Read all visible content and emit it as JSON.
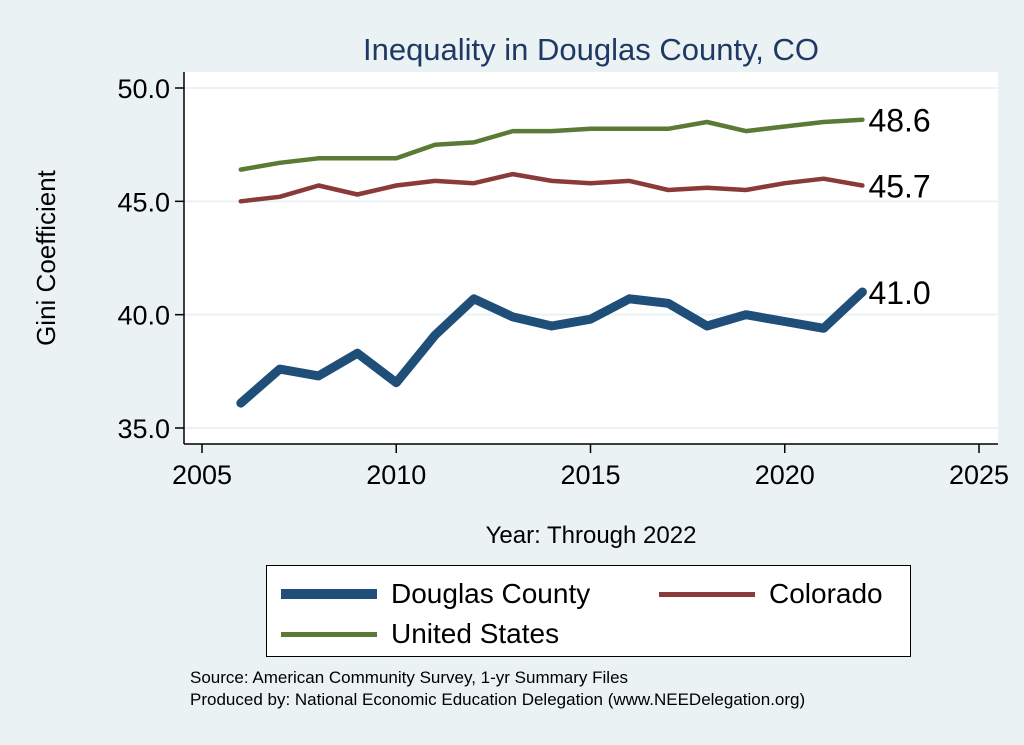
{
  "chart_data": {
    "type": "line",
    "title": "Inequality in Douglas County, CO",
    "xlabel": "Year: Through 2022",
    "ylabel": "Gini Coefficient",
    "xlim": [
      2005,
      2025
    ],
    "ylim": [
      35,
      50
    ],
    "xticks": [
      2005,
      2010,
      2015,
      2020,
      2025
    ],
    "yticks": [
      35,
      40,
      45,
      50
    ],
    "x_tick_labels": [
      "2005",
      "2010",
      "2015",
      "2020",
      "2025"
    ],
    "y_tick_labels": [
      "35.0",
      "40.0",
      "45.0",
      "50.0"
    ],
    "grid": true,
    "legend_position": "bottom",
    "x": [
      2006,
      2007,
      2008,
      2009,
      2010,
      2011,
      2012,
      2013,
      2014,
      2015,
      2016,
      2017,
      2018,
      2019,
      2020,
      2021,
      2022
    ],
    "series": [
      {
        "name": "Douglas County",
        "color": "#1f4e79",
        "values": [
          36.1,
          37.6,
          37.3,
          38.3,
          37.0,
          39.1,
          40.7,
          39.9,
          39.5,
          39.8,
          40.7,
          40.5,
          39.5,
          40.0,
          39.7,
          39.4,
          41.0
        ],
        "end_label": "41.0"
      },
      {
        "name": "Colorado",
        "color": "#8b3a3a",
        "values": [
          45.0,
          45.2,
          45.7,
          45.3,
          45.7,
          45.9,
          45.8,
          46.2,
          45.9,
          45.8,
          45.9,
          45.5,
          45.6,
          45.5,
          45.8,
          46.0,
          45.7
        ],
        "end_label": "45.7"
      },
      {
        "name": "United States",
        "color": "#5a7a35",
        "values": [
          46.4,
          46.7,
          46.9,
          46.9,
          46.9,
          47.5,
          47.6,
          48.1,
          48.1,
          48.2,
          48.2,
          48.2,
          48.5,
          48.1,
          48.3,
          48.5,
          48.6
        ],
        "end_label": "48.6"
      }
    ]
  },
  "legend": {
    "items": [
      "Douglas County",
      "Colorado",
      "United States"
    ]
  },
  "footnotes": {
    "source": "Source: American Community Survey, 1-yr Summary Files",
    "produced": "Produced by: National Economic Education Delegation (www.NEEDelegation.org)"
  }
}
